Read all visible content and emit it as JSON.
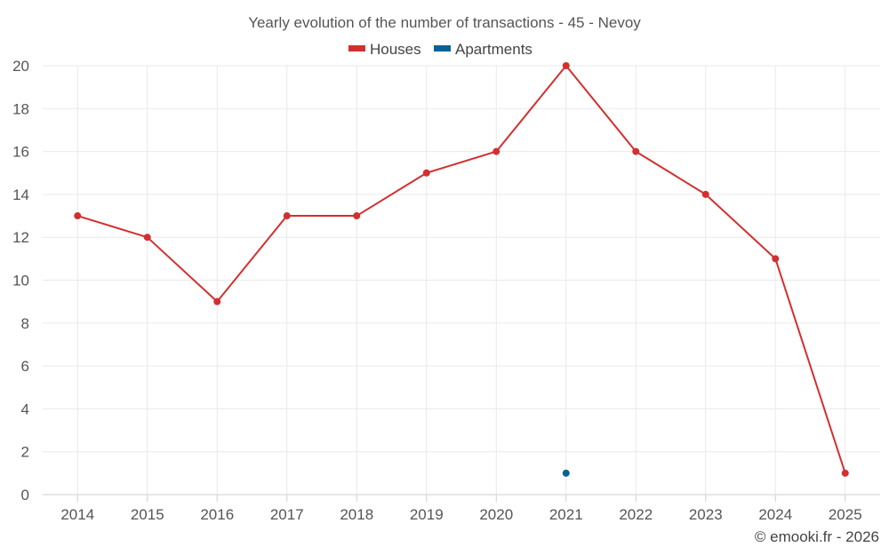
{
  "chart_data": {
    "type": "line",
    "title": "Yearly evolution of the number of transactions - 45 - Nevoy",
    "categories": [
      "2014",
      "2015",
      "2016",
      "2017",
      "2018",
      "2019",
      "2020",
      "2021",
      "2022",
      "2023",
      "2024",
      "2025"
    ],
    "series": [
      {
        "name": "Houses",
        "color": "#d32f2f",
        "values": [
          13,
          12,
          9,
          13,
          13,
          15,
          16,
          20,
          16,
          14,
          11,
          1
        ]
      },
      {
        "name": "Apartments",
        "color": "#0b6196",
        "values": [
          null,
          null,
          null,
          null,
          null,
          null,
          null,
          1,
          null,
          null,
          null,
          null
        ]
      }
    ],
    "y_ticks": [
      "0",
      "2",
      "4",
      "6",
      "8",
      "10",
      "12",
      "14",
      "16",
      "18",
      "20"
    ],
    "ylim": [
      0,
      20
    ],
    "xlabel": "",
    "ylabel": "",
    "grid": true,
    "legend_position": "top-center"
  },
  "credit": "© emooki.fr - 2026"
}
